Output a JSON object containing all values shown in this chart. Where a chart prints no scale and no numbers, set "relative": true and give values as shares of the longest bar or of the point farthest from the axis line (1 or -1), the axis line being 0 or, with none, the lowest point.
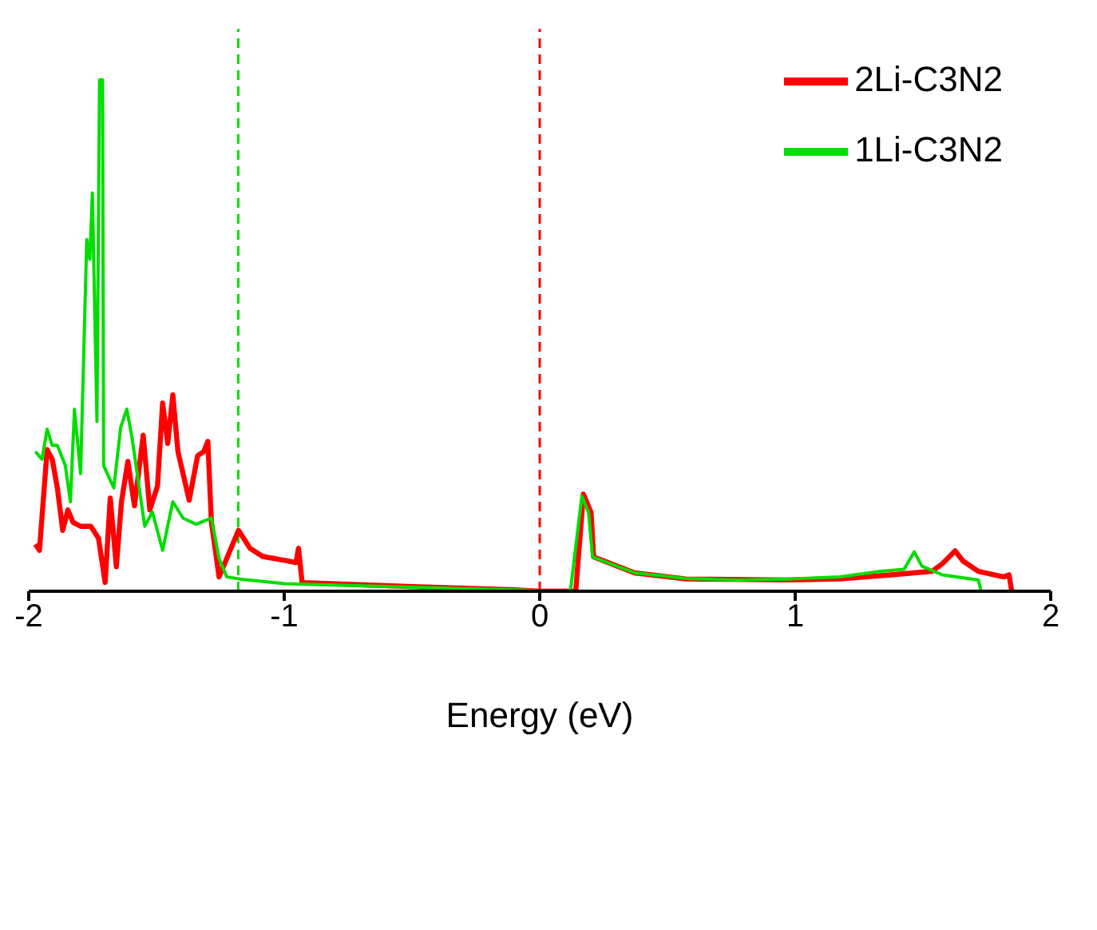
{
  "chart_data": {
    "type": "line",
    "relative": true,
    "xlabel": "Energy (eV)",
    "xlim": [
      -2,
      2
    ],
    "xticks": [
      -2,
      -1,
      0,
      1,
      2
    ],
    "grid": false,
    "legend": "top right",
    "marker": "none",
    "line_style": "solid",
    "series": [
      {
        "name": "2Li-C3N2",
        "color": "#ff0000",
        "x": [
          -1.974,
          -1.958,
          -1.928,
          -1.908,
          -1.888,
          -1.867,
          -1.847,
          -1.827,
          -1.797,
          -1.757,
          -1.727,
          -1.701,
          -1.681,
          -1.657,
          -1.637,
          -1.612,
          -1.586,
          -1.552,
          -1.526,
          -1.496,
          -1.476,
          -1.456,
          -1.436,
          -1.416,
          -1.372,
          -1.339,
          -1.315,
          -1.299,
          -1.285,
          -1.255,
          -1.225,
          -1.179,
          -1.134,
          -1.084,
          -0.994,
          -0.954,
          -0.944,
          -0.93,
          -0.5,
          -0.1,
          0,
          0.141,
          0.171,
          0.201,
          0.211,
          0.371,
          0.572,
          0.974,
          1.175,
          1.375,
          1.536,
          1.576,
          1.626,
          1.657,
          1.717,
          1.817,
          1.837,
          1.847
        ],
        "values": [
          0.092,
          0.08,
          0.277,
          0.258,
          0.202,
          0.119,
          0.159,
          0.135,
          0.127,
          0.127,
          0.104,
          0.017,
          0.182,
          0.048,
          0.175,
          0.254,
          0.167,
          0.305,
          0.159,
          0.206,
          0.368,
          0.289,
          0.384,
          0.273,
          0.178,
          0.265,
          0.273,
          0.293,
          0.135,
          0.028,
          0.064,
          0.119,
          0.084,
          0.068,
          0.06,
          0.056,
          0.084,
          0.017,
          0.009,
          0.003,
          0,
          0,
          0.19,
          0.154,
          0.067,
          0.036,
          0.024,
          0.022,
          0.024,
          0.032,
          0.039,
          0.054,
          0.079,
          0.059,
          0.039,
          0.028,
          0.032,
          0.002
        ]
      },
      {
        "name": "1Li-C3N2",
        "color": "#00dd00",
        "x": [
          -1.974,
          -1.948,
          -1.928,
          -1.908,
          -1.888,
          -1.857,
          -1.837,
          -1.821,
          -1.797,
          -1.773,
          -1.761,
          -1.751,
          -1.733,
          -1.723,
          -1.711,
          -1.707,
          -1.667,
          -1.64,
          -1.616,
          -1.596,
          -1.58,
          -1.546,
          -1.516,
          -1.476,
          -1.436,
          -1.396,
          -1.345,
          -1.285,
          -1.255,
          -1.225,
          -1.175,
          -1,
          -0.5,
          -0.05,
          0,
          0.12,
          0.165,
          0.191,
          0.207,
          0.271,
          0.371,
          0.572,
          0.773,
          0.974,
          1.175,
          1.335,
          1.426,
          1.466,
          1.496,
          1.576,
          1.717,
          1.727
        ],
        "values": [
          0.273,
          0.258,
          0.317,
          0.285,
          0.285,
          0.246,
          0.175,
          0.356,
          0.23,
          0.688,
          0.649,
          0.779,
          0.332,
          1,
          1,
          0.246,
          0.202,
          0.321,
          0.356,
          0.301,
          0.246,
          0.127,
          0.155,
          0.08,
          0.175,
          0.143,
          0.131,
          0.143,
          0.064,
          0.028,
          0.024,
          0.015,
          0.008,
          0.002,
          0,
          0,
          0.186,
          0.154,
          0.067,
          0.055,
          0.036,
          0.025,
          0.022,
          0.024,
          0.028,
          0.039,
          0.043,
          0.077,
          0.049,
          0.032,
          0.022,
          0.002
        ]
      }
    ],
    "ref_lines": [
      {
        "axis": "x",
        "value": -1.18,
        "color": "#00dd00",
        "line_style": "dashed"
      },
      {
        "axis": "x",
        "value": 0,
        "color": "#ff0000",
        "line_style": "dashed"
      }
    ]
  }
}
